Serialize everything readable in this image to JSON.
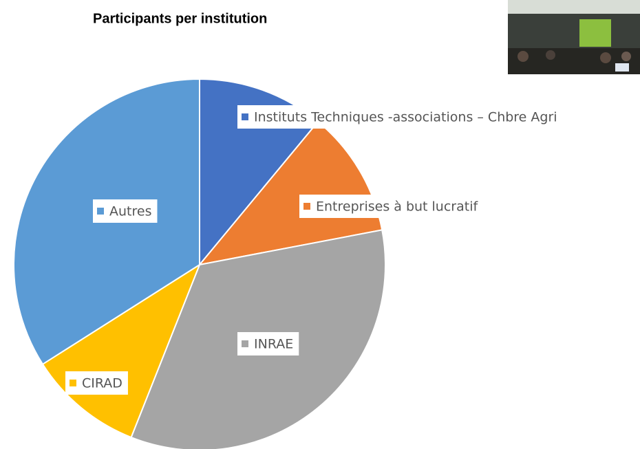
{
  "chart_data": {
    "type": "pie",
    "title": "Participants per institution",
    "categories": [
      "Instituts Techniques -associations – Chbre Agri",
      "Entreprises à but lucratif",
      "INRAE",
      "CIRAD",
      "Autres"
    ],
    "values": [
      11,
      11,
      34,
      10,
      34
    ],
    "colors": [
      "#4472c4",
      "#ed7d31",
      "#a5a5a5",
      "#ffc000",
      "#5b9bd5"
    ]
  }
}
